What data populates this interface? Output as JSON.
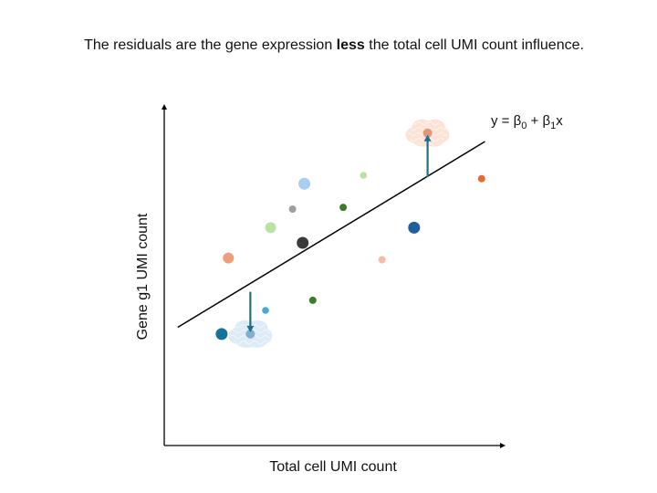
{
  "caption": {
    "before": "The residuals are the gene expression ",
    "emphasis": "less",
    "after": " the total cell UMI count influence."
  },
  "xaxis_label": "Total cell UMI count",
  "yaxis_label": "Gene g1 UMI count",
  "equation": {
    "lhs": "y = β",
    "sub0": "0",
    "plus": " + β",
    "sub1": "1",
    "var": "x"
  },
  "colors": {
    "axis": "#000000",
    "fit_line": "#000000",
    "arrow": "#1f6e8c",
    "cloud_warm": "#fde3d6",
    "cloud_cool": "#dcebf6"
  },
  "chart_data": {
    "type": "scatter",
    "title": "",
    "xlabel": "Total cell UMI count",
    "ylabel": "Gene g1 UMI count",
    "xlim": [
      0,
      100
    ],
    "ylim": [
      0,
      100
    ],
    "fit_line": {
      "x": [
        4,
        95
      ],
      "y": [
        35,
        90
      ]
    },
    "points": [
      {
        "x": 17,
        "y": 33,
        "size": 6.5,
        "color": "#15729b"
      },
      {
        "x": 25.5,
        "y": 33,
        "size": 5,
        "color": "#7fb0cc"
      },
      {
        "x": 30,
        "y": 40,
        "size": 3.8,
        "color": "#4aa8d8"
      },
      {
        "x": 19,
        "y": 55.5,
        "size": 6,
        "color": "#ef9e7c"
      },
      {
        "x": 31.5,
        "y": 64.5,
        "size": 6,
        "color": "#b7e3a4"
      },
      {
        "x": 38,
        "y": 70,
        "size": 4,
        "color": "#9e9e9e"
      },
      {
        "x": 41.5,
        "y": 77.5,
        "size": 6.5,
        "color": "#a7cdef"
      },
      {
        "x": 41,
        "y": 60,
        "size": 6.5,
        "color": "#3a3a3a"
      },
      {
        "x": 44,
        "y": 43,
        "size": 4,
        "color": "#3b7c2a"
      },
      {
        "x": 53,
        "y": 70.5,
        "size": 4,
        "color": "#3b7c2a"
      },
      {
        "x": 59,
        "y": 80,
        "size": 3.8,
        "color": "#b7e3a4"
      },
      {
        "x": 64.5,
        "y": 55,
        "size": 4,
        "color": "#f6bda4"
      },
      {
        "x": 74,
        "y": 64.5,
        "size": 6.5,
        "color": "#1f5f9e"
      },
      {
        "x": 78,
        "y": 92.5,
        "size": 5,
        "color": "#e0967a"
      },
      {
        "x": 94,
        "y": 79,
        "size": 4,
        "color": "#e46b2e"
      }
    ],
    "residuals": [
      {
        "x": 25.5,
        "y_fit": 45.5,
        "y_obs": 33,
        "cloud": "cool"
      },
      {
        "x": 78,
        "y_fit": 79.5,
        "y_obs": 92.5,
        "cloud": "warm"
      }
    ]
  }
}
